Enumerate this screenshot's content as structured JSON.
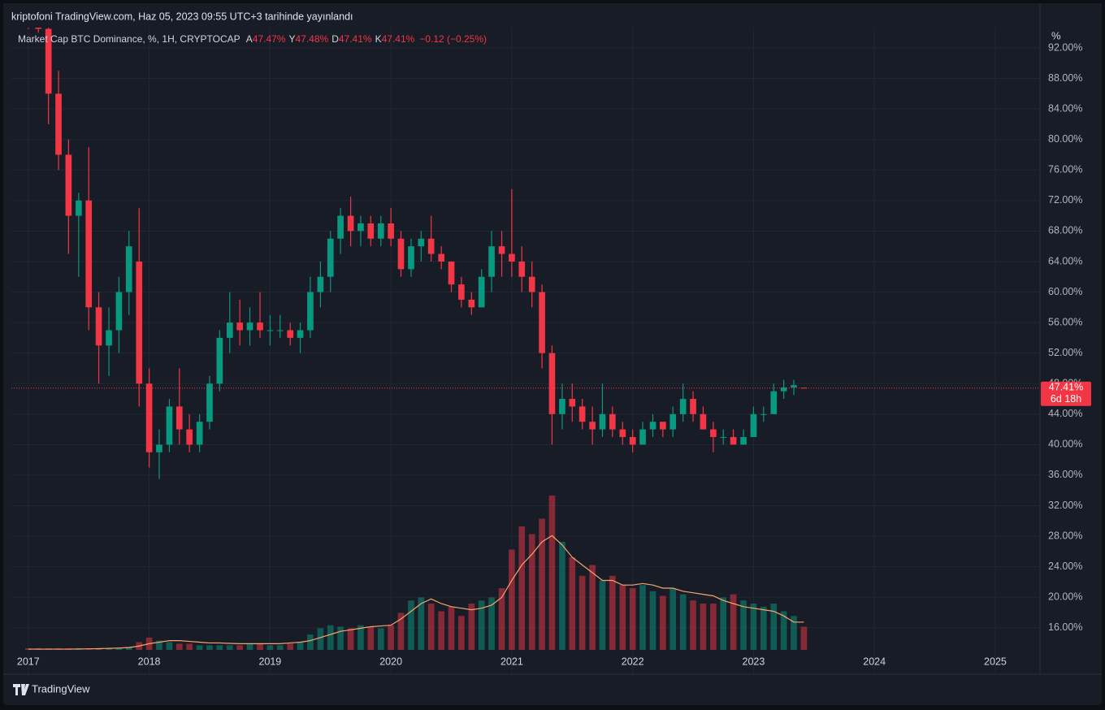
{
  "header": {
    "published": "kriptofoni TradingView.com, Haz 05, 2023 09:55 UTC+3 tarihinde yayınlandı",
    "symbol": "Market Cap BTC Dominance, %, 1H, CRYPTOCAP",
    "o_label": "A",
    "o_value": "47.47%",
    "h_label": "Y",
    "h_value": "47.48%",
    "l_label": "D",
    "l_value": "47.41%",
    "c_label": "K",
    "c_value": "47.41%",
    "change": "−0.12 (−0.25%)",
    "axis_unit": "%",
    "brand": "TradingView"
  },
  "chart_data": {
    "type": "candlestick",
    "up_color": "#089981",
    "down_color": "#f23645",
    "grid": true,
    "x": [
      2017,
      2017.083,
      2017.167,
      2017.25,
      2017.333,
      2017.417,
      2017.5,
      2017.583,
      2017.667,
      2017.75,
      2017.833,
      2017.917,
      2018,
      2018.083,
      2018.167,
      2018.25,
      2018.333,
      2018.417,
      2018.5,
      2018.583,
      2018.667,
      2018.75,
      2018.833,
      2018.917,
      2019,
      2019.083,
      2019.167,
      2019.25,
      2019.333,
      2019.417,
      2019.5,
      2019.583,
      2019.667,
      2019.75,
      2019.833,
      2019.917,
      2020,
      2020.083,
      2020.167,
      2020.25,
      2020.333,
      2020.417,
      2020.5,
      2020.583,
      2020.667,
      2020.75,
      2020.833,
      2020.917,
      2021,
      2021.083,
      2021.167,
      2021.25,
      2021.333,
      2021.417,
      2021.5,
      2021.583,
      2021.667,
      2021.75,
      2021.833,
      2021.917,
      2022,
      2022.083,
      2022.167,
      2022.25,
      2022.333,
      2022.417,
      2022.5,
      2022.583,
      2022.667,
      2022.75,
      2022.833,
      2022.917,
      2023,
      2023.083,
      2023.167,
      2023.25,
      2023.333,
      2023.417
    ],
    "open": [
      95.5,
      95,
      94.5,
      86,
      78,
      70,
      72,
      58,
      53,
      55,
      60,
      64,
      48,
      39,
      40,
      45,
      42,
      40,
      43,
      48,
      54,
      56,
      55,
      56,
      55,
      55,
      55,
      54,
      55,
      60,
      62,
      67,
      70,
      68,
      69,
      67,
      69,
      67,
      63,
      66,
      67,
      65,
      64,
      61,
      59,
      58,
      62,
      66,
      65,
      64,
      62,
      60,
      52,
      44,
      46,
      45,
      43,
      42,
      44,
      42,
      41,
      40,
      42,
      43,
      42,
      44,
      46,
      44,
      42,
      41,
      41,
      40,
      41,
      44,
      44,
      47,
      47.5,
      47.47
    ],
    "high": [
      96,
      95.5,
      95,
      89,
      80,
      73,
      79,
      60,
      58,
      62,
      68,
      71,
      50,
      42,
      46,
      50,
      44,
      44,
      49,
      55,
      60,
      59,
      58,
      60,
      57,
      57,
      56,
      56,
      62,
      64,
      68,
      71,
      72.5,
      70,
      70,
      70,
      71,
      68,
      67,
      68,
      70,
      66,
      64,
      62,
      60,
      63,
      68,
      68,
      73.5,
      66,
      64,
      61,
      53,
      48,
      48,
      46,
      45,
      48,
      45,
      43,
      42,
      43,
      44,
      43,
      45,
      48,
      47,
      45,
      43,
      42,
      42,
      42,
      45,
      45,
      48,
      48.5,
      48.5,
      47.48
    ],
    "low": [
      94.5,
      94,
      82,
      76,
      65,
      62,
      55,
      48,
      49,
      52,
      57,
      45,
      37,
      35.5,
      39,
      40,
      39,
      39,
      42,
      47,
      52,
      53,
      53,
      54,
      53,
      54,
      53,
      52,
      54,
      58,
      60,
      65,
      66,
      66,
      66,
      66,
      66,
      62,
      62,
      64,
      64,
      63,
      60,
      58,
      57,
      58,
      60,
      62,
      62,
      60,
      58,
      50,
      40,
      42,
      43,
      42,
      40,
      41,
      41,
      40,
      39,
      40,
      41,
      41,
      41,
      43,
      43,
      42,
      39,
      40,
      40,
      40,
      41,
      43,
      44,
      46,
      46.5,
      47.41
    ],
    "close": [
      95,
      94.5,
      86,
      78,
      70,
      72,
      58,
      53,
      55,
      60,
      66,
      48,
      39,
      40,
      45,
      42,
      40,
      43,
      48,
      54,
      56,
      55,
      56,
      55,
      55,
      55,
      54,
      55,
      60,
      62,
      67,
      70,
      68,
      69,
      67,
      69,
      67,
      63,
      66,
      67,
      65,
      64,
      61,
      59,
      58,
      62,
      66,
      65,
      64,
      62,
      60,
      52,
      44,
      46,
      45,
      43,
      42,
      44,
      42,
      41,
      40,
      42,
      43,
      42,
      44,
      46,
      44,
      42,
      41,
      41,
      40,
      41,
      44,
      44,
      47,
      47.5,
      47.8,
      47.41
    ],
    "volume": [
      1,
      1,
      1,
      1,
      1,
      1,
      1,
      1,
      1,
      1,
      2,
      5,
      8,
      6,
      5,
      4,
      4,
      3,
      3,
      3,
      3,
      3,
      4,
      4,
      3,
      3,
      4,
      5,
      10,
      14,
      16,
      15,
      14,
      16,
      15,
      14,
      16,
      24,
      32,
      34,
      30,
      25,
      28,
      22,
      30,
      32,
      34,
      40,
      65,
      80,
      75,
      85,
      100,
      70,
      60,
      48,
      55,
      45,
      48,
      42,
      40,
      42,
      38,
      35,
      40,
      36,
      32,
      30,
      30,
      34,
      36,
      32,
      30,
      28,
      30,
      25,
      22,
      15
    ],
    "volume_ma": [
      0.5,
      0.5,
      0.5,
      0.5,
      0.5,
      0.6,
      0.7,
      0.8,
      1,
      1.2,
      1.5,
      2.5,
      4,
      5,
      6,
      6,
      5.5,
      5,
      4.5,
      4.5,
      4.2,
      4,
      4,
      4,
      4,
      4,
      4.5,
      5,
      6,
      8,
      10,
      12,
      13,
      14,
      15,
      15.5,
      16,
      20,
      25,
      30,
      33,
      30,
      28,
      27,
      26,
      27,
      29,
      34,
      45,
      55,
      62,
      70,
      74,
      68,
      60,
      55,
      50,
      45,
      45,
      42,
      42,
      43,
      42,
      40,
      40,
      38,
      37,
      36,
      35,
      32,
      30,
      28,
      27,
      26,
      25,
      22,
      18,
      18
    ],
    "volume_ma_color": "#f7a46b",
    "xlim": [
      2016.86,
      2025.37
    ],
    "xticks": [
      2017,
      2018,
      2019,
      2020,
      2021,
      2022,
      2023,
      2024,
      2025
    ],
    "ylim": [
      13.1,
      95.3
    ],
    "yticks": [
      {
        "value": 16,
        "label": "16.00%"
      },
      {
        "value": 20,
        "label": "20.00%"
      },
      {
        "value": 24,
        "label": "24.00%"
      },
      {
        "value": 28,
        "label": "28.00%"
      },
      {
        "value": 32,
        "label": "32.00%"
      },
      {
        "value": 36,
        "label": "36.00%"
      },
      {
        "value": 40,
        "label": "40.00%"
      },
      {
        "value": 44,
        "label": "44.00%"
      },
      {
        "value": 48,
        "label": "48.00%"
      },
      {
        "value": 52,
        "label": "52.00%"
      },
      {
        "value": 56,
        "label": "56.00%"
      },
      {
        "value": 60,
        "label": "60.00%"
      },
      {
        "value": 64,
        "label": "64.00%"
      },
      {
        "value": 68,
        "label": "68.00%"
      },
      {
        "value": 72,
        "label": "72.00%"
      },
      {
        "value": 76,
        "label": "76.00%"
      },
      {
        "value": 80,
        "label": "80.00%"
      },
      {
        "value": 84,
        "label": "84.00%"
      },
      {
        "value": 88,
        "label": "88.00%"
      },
      {
        "value": 92,
        "label": "92.00%"
      }
    ],
    "price_line": {
      "value": 47.41,
      "label": "47.41%",
      "countdown": "6d 18h",
      "color": "#f23645"
    }
  }
}
